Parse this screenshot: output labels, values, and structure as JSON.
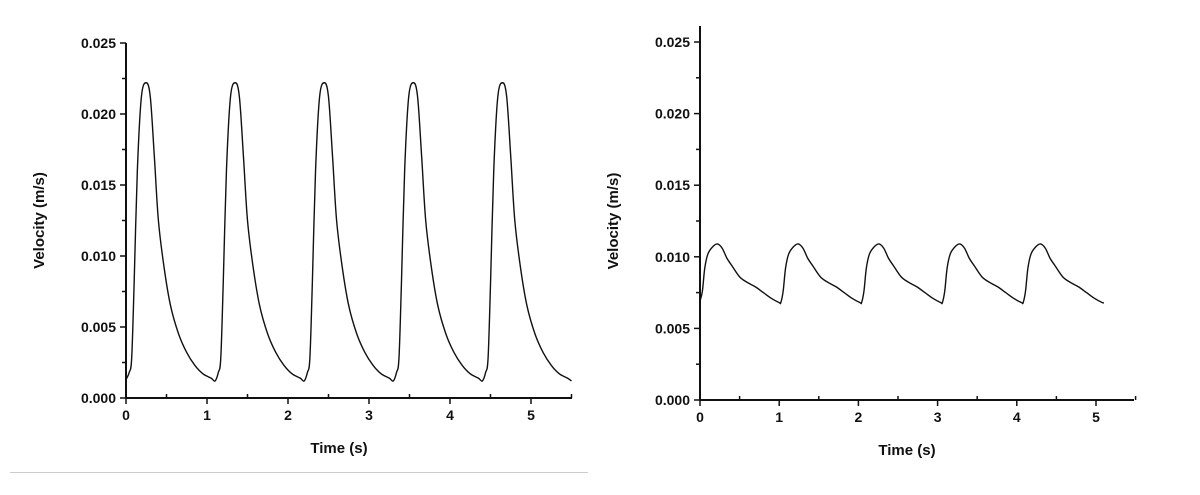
{
  "chart_data": [
    {
      "type": "line",
      "title": "",
      "xlabel": "Time (s)",
      "ylabel": "Velocity (m/s)",
      "xlim": [
        0,
        5.5
      ],
      "ylim": [
        0,
        0.025
      ],
      "xticks": [
        "0",
        "1",
        "2",
        "3",
        "4",
        "5"
      ],
      "yticks": [
        "0.000",
        "0.005",
        "0.010",
        "0.015",
        "0.020",
        "0.025"
      ],
      "grid": false,
      "series": [
        {
          "name": "velocity",
          "period_s": 1.1,
          "cycles": 5,
          "cycle_profile": [
            [
              0,
              0.0013
            ],
            [
              0.04,
              0.0018
            ],
            [
              0.07,
              0.0028
            ],
            [
              0.1,
              0.008
            ],
            [
              0.14,
              0.016
            ],
            [
              0.19,
              0.0212
            ],
            [
              0.25,
              0.0222
            ],
            [
              0.3,
              0.0212
            ],
            [
              0.35,
              0.017
            ],
            [
              0.4,
              0.0125
            ],
            [
              0.47,
              0.0092
            ],
            [
              0.55,
              0.0065
            ],
            [
              0.65,
              0.0045
            ],
            [
              0.75,
              0.0032
            ],
            [
              0.85,
              0.0023
            ],
            [
              0.95,
              0.0017
            ],
            [
              1.05,
              0.0014
            ],
            [
              1.1,
              0.0012
            ]
          ]
        }
      ]
    },
    {
      "type": "line",
      "title": "",
      "xlabel": "Time (s)",
      "ylabel": "Velocity (m/s)",
      "xlim": [
        0,
        5.5
      ],
      "ylim": [
        0,
        0.026
      ],
      "xticks": [
        "0",
        "1",
        "2",
        "3",
        "4",
        "5"
      ],
      "yticks": [
        "0.000",
        "0.005",
        "0.010",
        "0.015",
        "0.020",
        "0.025"
      ],
      "grid": false,
      "series": [
        {
          "name": "velocity",
          "period_s": 1.02,
          "cycles": 5,
          "cycle_profile": [
            [
              0,
              0.0069
            ],
            [
              0.03,
              0.0076
            ],
            [
              0.06,
              0.0092
            ],
            [
              0.1,
              0.0102
            ],
            [
              0.16,
              0.0107
            ],
            [
              0.22,
              0.0109
            ],
            [
              0.28,
              0.0106
            ],
            [
              0.34,
              0.0099
            ],
            [
              0.4,
              0.0094
            ],
            [
              0.5,
              0.0086
            ],
            [
              0.6,
              0.0082
            ],
            [
              0.7,
              0.0079
            ],
            [
              0.8,
              0.0075
            ],
            [
              0.9,
              0.0071
            ],
            [
              1.0,
              0.0068
            ],
            [
              1.02,
              0.0068
            ]
          ]
        }
      ]
    }
  ]
}
